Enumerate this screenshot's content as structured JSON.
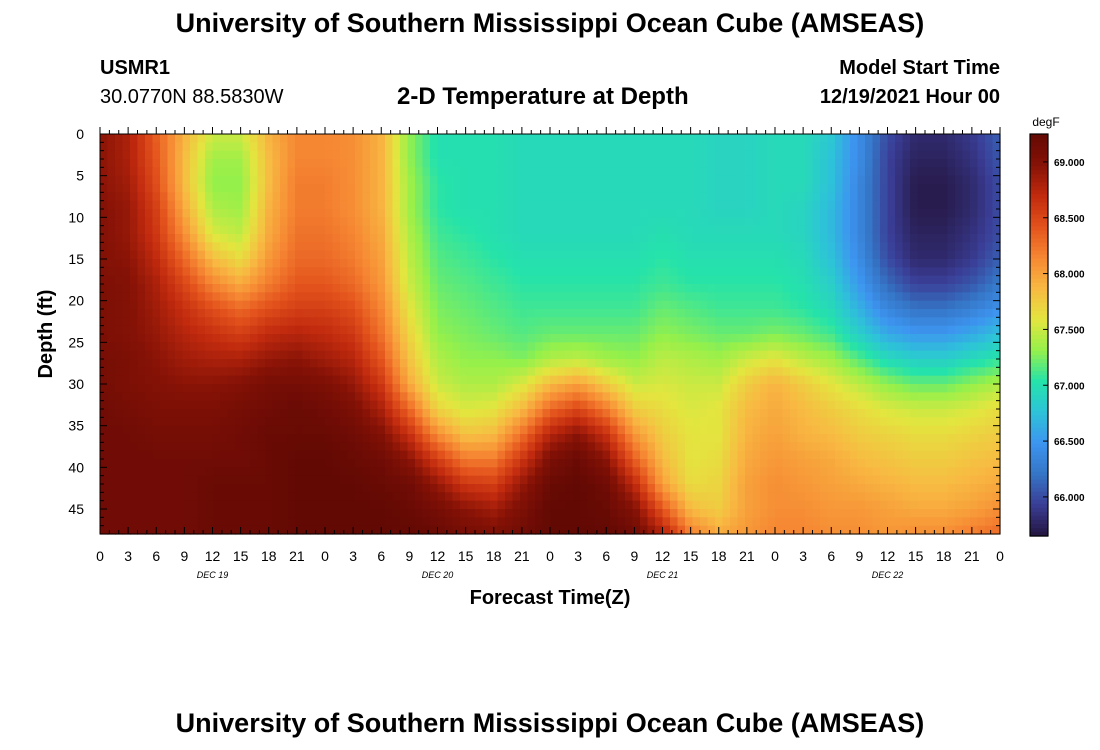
{
  "header": {
    "title": "University of Southern Mississippi Ocean Cube (AMSEAS)",
    "station_id": "USMR1",
    "station_position": "30.0770N  88.5830W",
    "subtitle": "2-D Temperature at Depth",
    "model_start_label": "Model Start Time",
    "model_start_value": "12/19/2021 Hour 00"
  },
  "footer": {
    "title": "University of Southern Mississippi Ocean Cube (AMSEAS)"
  },
  "chart_data": {
    "type": "heatmap",
    "title": "2-D Temperature at Depth",
    "xlabel": "Forecast Time(Z)",
    "ylabel": "Depth (ft)",
    "x_unit": "hours since 12/19/2021 00Z",
    "xlim": [
      0,
      96
    ],
    "ylim": [
      0,
      48
    ],
    "x_tick_values": [
      0,
      3,
      6,
      9,
      12,
      15,
      18,
      21,
      24,
      27,
      30,
      33,
      36,
      39,
      42,
      45,
      48,
      51,
      54,
      57,
      60,
      63,
      66,
      69,
      72,
      75,
      78,
      81,
      84,
      87,
      90,
      93,
      96
    ],
    "x_tick_labels": [
      "0",
      "3",
      "6",
      "9",
      "12",
      "15",
      "18",
      "21",
      "0",
      "3",
      "6",
      "9",
      "12",
      "15",
      "18",
      "21",
      "0",
      "3",
      "6",
      "9",
      "12",
      "15",
      "18",
      "21",
      "0",
      "3",
      "6",
      "9",
      "12",
      "15",
      "18",
      "21",
      "0"
    ],
    "date_labels": [
      {
        "label": "DEC 19",
        "hour": 12
      },
      {
        "label": "DEC 20",
        "hour": 36
      },
      {
        "label": "DEC 21",
        "hour": 60
      },
      {
        "label": "DEC 22",
        "hour": 84
      }
    ],
    "y_ticks": [
      0,
      5,
      10,
      15,
      20,
      25,
      30,
      35,
      40,
      45
    ],
    "colorbar": {
      "unit": "degF",
      "range": [
        65.65,
        69.25
      ],
      "ticks": [
        66.0,
        66.5,
        67.0,
        67.5,
        68.0,
        68.5,
        69.0
      ],
      "tick_labels": [
        "66.000",
        "66.500",
        "67.000",
        "67.500",
        "68.000",
        "68.500",
        "69.000"
      ],
      "colors": [
        "#24153f",
        "#3a3d95",
        "#3575c6",
        "#3d95f0",
        "#2dc3d8",
        "#25e3aa",
        "#96f04a",
        "#e3e63f",
        "#f8b942",
        "#f68733",
        "#e3521c",
        "#c12a0e",
        "#861206",
        "#630904"
      ]
    },
    "depths": [
      0,
      3,
      6,
      9,
      12,
      15,
      18,
      21,
      24,
      27,
      30,
      33,
      36,
      39,
      42,
      45,
      48
    ],
    "times": [
      0,
      3,
      6,
      9,
      12,
      15,
      18,
      21,
      24,
      27,
      30,
      33,
      36,
      39,
      42,
      45,
      48,
      51,
      54,
      57,
      60,
      63,
      66,
      69,
      72,
      75,
      78,
      81,
      84,
      87,
      90,
      93,
      96
    ],
    "values": [
      [
        68.95,
        68.8,
        68.35,
        67.9,
        67.5,
        67.5,
        67.9,
        68.15,
        68.15,
        68.1,
        67.9,
        67.3,
        67.0,
        67.0,
        67.0,
        66.95,
        66.95,
        66.95,
        66.95,
        66.95,
        66.95,
        66.95,
        66.9,
        66.9,
        66.95,
        66.95,
        66.8,
        66.4,
        66.0,
        65.8,
        65.8,
        65.9,
        66.1
      ],
      [
        68.95,
        68.8,
        68.4,
        67.85,
        67.35,
        67.35,
        67.85,
        68.15,
        68.15,
        68.1,
        67.9,
        67.3,
        67.0,
        67.0,
        67.0,
        66.95,
        66.95,
        66.95,
        66.95,
        66.95,
        66.95,
        66.95,
        66.9,
        66.9,
        66.95,
        66.95,
        66.75,
        66.4,
        65.95,
        65.75,
        65.75,
        65.85,
        66.05
      ],
      [
        68.95,
        68.85,
        68.45,
        67.85,
        67.3,
        67.3,
        67.85,
        68.2,
        68.2,
        68.1,
        67.9,
        67.35,
        67.05,
        67.0,
        67.0,
        66.95,
        66.95,
        66.95,
        66.95,
        66.95,
        66.95,
        66.95,
        66.9,
        66.9,
        66.95,
        66.95,
        66.75,
        66.35,
        65.95,
        65.7,
        65.7,
        65.8,
        66.0
      ],
      [
        69.0,
        68.9,
        68.55,
        67.95,
        67.4,
        67.35,
        67.9,
        68.2,
        68.2,
        68.1,
        67.9,
        67.35,
        67.05,
        67.0,
        67.0,
        66.95,
        66.95,
        66.95,
        66.95,
        66.95,
        66.95,
        66.95,
        66.9,
        66.9,
        66.95,
        66.9,
        66.7,
        66.35,
        65.95,
        65.7,
        65.7,
        65.8,
        66.0
      ],
      [
        69.0,
        68.9,
        68.6,
        68.1,
        67.55,
        67.45,
        67.95,
        68.25,
        68.25,
        68.15,
        67.95,
        67.4,
        67.1,
        67.05,
        67.0,
        66.95,
        66.95,
        66.95,
        66.95,
        66.95,
        67.0,
        66.95,
        66.95,
        66.95,
        66.95,
        66.9,
        66.7,
        66.35,
        65.95,
        65.75,
        65.75,
        65.85,
        66.0
      ],
      [
        69.0,
        68.95,
        68.7,
        68.3,
        67.85,
        67.65,
        68.05,
        68.3,
        68.3,
        68.2,
        68.0,
        67.45,
        67.15,
        67.1,
        67.05,
        67.0,
        67.0,
        67.0,
        67.0,
        67.0,
        67.05,
        67.0,
        67.0,
        67.0,
        67.0,
        66.95,
        66.75,
        66.4,
        66.0,
        65.8,
        65.8,
        65.9,
        66.1
      ],
      [
        69.05,
        69.0,
        68.8,
        68.5,
        68.15,
        67.95,
        68.2,
        68.4,
        68.4,
        68.3,
        68.05,
        67.5,
        67.2,
        67.15,
        67.1,
        67.05,
        67.05,
        67.05,
        67.05,
        67.05,
        67.1,
        67.05,
        67.05,
        67.05,
        67.05,
        67.0,
        66.85,
        66.5,
        66.15,
        65.95,
        65.95,
        66.05,
        66.25
      ],
      [
        69.05,
        69.0,
        68.85,
        68.65,
        68.45,
        68.3,
        68.45,
        68.55,
        68.55,
        68.45,
        68.15,
        67.6,
        67.25,
        67.2,
        67.15,
        67.1,
        67.1,
        67.1,
        67.1,
        67.1,
        67.2,
        67.15,
        67.1,
        67.1,
        67.1,
        67.05,
        66.95,
        66.65,
        66.35,
        66.2,
        66.2,
        66.3,
        66.45
      ],
      [
        69.05,
        69.0,
        68.9,
        68.75,
        68.65,
        68.55,
        68.7,
        68.75,
        68.7,
        68.6,
        68.25,
        67.7,
        67.3,
        67.25,
        67.2,
        67.15,
        67.2,
        67.2,
        67.2,
        67.2,
        67.3,
        67.25,
        67.2,
        67.2,
        67.25,
        67.2,
        67.1,
        66.85,
        66.6,
        66.5,
        66.5,
        66.6,
        66.75
      ],
      [
        69.1,
        69.05,
        68.95,
        68.85,
        68.8,
        68.8,
        68.9,
        68.95,
        68.85,
        68.75,
        68.4,
        67.8,
        67.4,
        67.3,
        67.3,
        67.25,
        67.4,
        67.45,
        67.35,
        67.3,
        67.45,
        67.4,
        67.35,
        67.5,
        67.6,
        67.45,
        67.35,
        67.15,
        66.95,
        66.85,
        66.85,
        66.95,
        67.05
      ],
      [
        69.1,
        69.05,
        69.0,
        68.95,
        68.95,
        69.0,
        69.1,
        69.1,
        69.05,
        68.9,
        68.6,
        67.95,
        67.5,
        67.4,
        67.4,
        67.55,
        67.85,
        68.0,
        67.75,
        67.5,
        67.55,
        67.5,
        67.5,
        67.75,
        67.9,
        67.75,
        67.6,
        67.45,
        67.3,
        67.2,
        67.2,
        67.3,
        67.4
      ],
      [
        69.15,
        69.1,
        69.05,
        69.05,
        69.05,
        69.1,
        69.15,
        69.2,
        69.15,
        69.05,
        68.8,
        68.3,
        67.7,
        67.55,
        67.6,
        67.85,
        68.3,
        68.5,
        68.2,
        67.75,
        67.65,
        67.55,
        67.6,
        67.85,
        67.95,
        67.85,
        67.75,
        67.65,
        67.55,
        67.5,
        67.5,
        67.55,
        67.65
      ],
      [
        69.15,
        69.15,
        69.1,
        69.1,
        69.1,
        69.15,
        69.2,
        69.2,
        69.2,
        69.15,
        69.0,
        68.65,
        68.1,
        67.8,
        67.85,
        68.25,
        68.75,
        68.95,
        68.65,
        68.05,
        67.75,
        67.6,
        67.6,
        67.9,
        68.0,
        67.9,
        67.85,
        67.75,
        67.7,
        67.65,
        67.65,
        67.7,
        67.75
      ],
      [
        69.15,
        69.15,
        69.15,
        69.15,
        69.15,
        69.15,
        69.2,
        69.25,
        69.25,
        69.2,
        69.15,
        68.95,
        68.55,
        68.2,
        68.2,
        68.6,
        69.05,
        69.2,
        68.95,
        68.35,
        67.85,
        67.6,
        67.65,
        67.95,
        68.05,
        68.0,
        67.95,
        67.85,
        67.8,
        67.75,
        67.75,
        67.8,
        67.85
      ],
      [
        69.15,
        69.15,
        69.15,
        69.15,
        69.2,
        69.2,
        69.2,
        69.25,
        69.25,
        69.25,
        69.2,
        69.15,
        68.9,
        68.6,
        68.55,
        68.9,
        69.2,
        69.25,
        69.15,
        68.7,
        68.0,
        67.65,
        67.7,
        68.0,
        68.1,
        68.05,
        68.0,
        67.95,
        67.9,
        67.85,
        67.85,
        67.9,
        67.95
      ],
      [
        69.15,
        69.15,
        69.15,
        69.15,
        69.2,
        69.2,
        69.2,
        69.25,
        69.25,
        69.25,
        69.25,
        69.2,
        69.1,
        68.95,
        68.85,
        69.05,
        69.25,
        69.25,
        69.2,
        69.0,
        68.4,
        67.85,
        67.75,
        68.0,
        68.1,
        68.1,
        68.05,
        68.05,
        68.0,
        67.95,
        67.95,
        68.0,
        68.1
      ],
      [
        69.15,
        69.15,
        69.15,
        69.15,
        69.2,
        69.2,
        69.2,
        69.25,
        69.25,
        69.25,
        69.25,
        69.25,
        69.2,
        69.1,
        69.05,
        69.15,
        69.25,
        69.25,
        69.25,
        69.15,
        68.8,
        68.2,
        67.95,
        68.05,
        68.15,
        68.15,
        68.1,
        68.1,
        68.05,
        68.1,
        68.1,
        68.2,
        68.3
      ]
    ]
  }
}
